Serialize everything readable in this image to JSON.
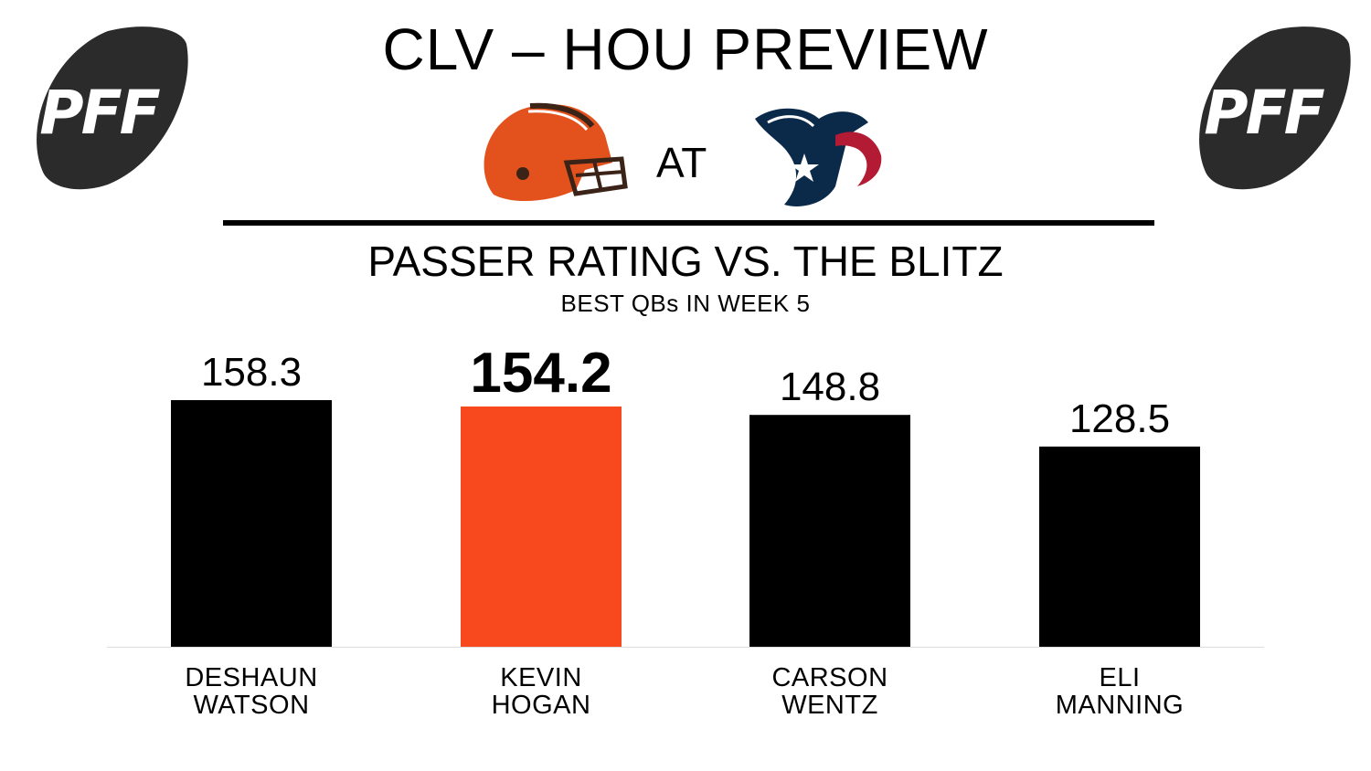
{
  "header": {
    "title": "CLV – HOU PREVIEW",
    "at_label": "AT",
    "logo_text": "PFF",
    "away_team_logo": "browns-helmet-icon",
    "home_team_logo": "texans-bull-icon"
  },
  "colors": {
    "highlight": "#F8491E",
    "bar": "#000000",
    "browns_orange": "#E3521D",
    "browns_brown": "#3B2417",
    "texans_navy": "#0B2A4A",
    "texans_red": "#B31B34"
  },
  "chart_data": {
    "type": "bar",
    "title": "PASSER RATING VS. THE BLITZ",
    "subtitle": "BEST QBs IN WEEK 5",
    "categories": [
      "DESHAUN WATSON",
      "KEVIN HOGAN",
      "CARSON WENTZ",
      "ELI MANNING"
    ],
    "category_lines": [
      [
        "DESHAUN",
        "WATSON"
      ],
      [
        "KEVIN",
        "HOGAN"
      ],
      [
        "CARSON",
        "WENTZ"
      ],
      [
        "ELI",
        "MANNING"
      ]
    ],
    "values": [
      158.3,
      154.2,
      148.8,
      128.5
    ],
    "value_labels": [
      "158.3",
      "154.2",
      "148.8",
      "128.5"
    ],
    "highlight_index": 1,
    "ylim": [
      0,
      158.3
    ],
    "grid": false,
    "legend": "none"
  }
}
